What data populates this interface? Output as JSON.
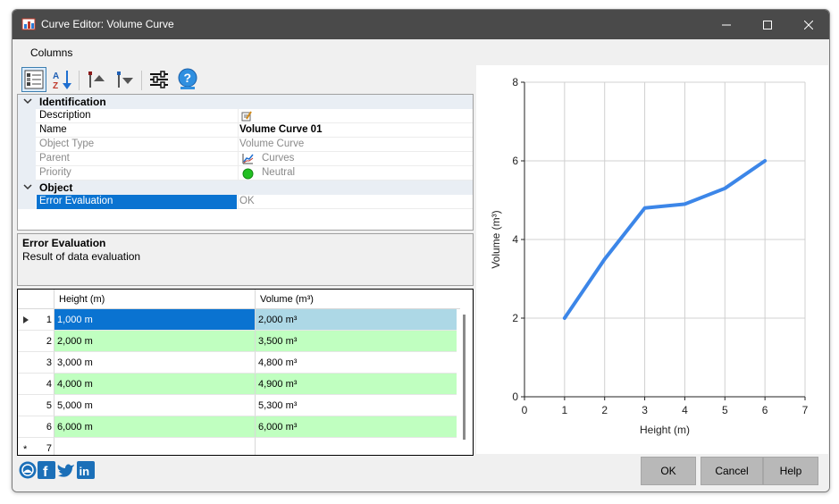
{
  "window": {
    "title": "Curve Editor: Volume Curve",
    "minimize_icon": "minimize-icon",
    "maximize_icon": "maximize-icon",
    "close_icon": "close-icon"
  },
  "menu": {
    "columns": "Columns"
  },
  "toolbar": {
    "buttons": [
      "categorized-view-icon",
      "sort-alphabetical-icon",
      "move-up-icon",
      "move-down-icon",
      "settings-sliders-icon",
      "help-icon"
    ]
  },
  "properties": {
    "categories": [
      {
        "label": "Identification",
        "rows": [
          {
            "name": "Description",
            "value": "",
            "icon": "edit-note-icon"
          },
          {
            "name": "Name",
            "value": "Volume Curve 01"
          },
          {
            "name": "Object Type",
            "value": "Volume Curve"
          },
          {
            "name": "Parent",
            "value": "Curves",
            "icon": "curves-icon"
          },
          {
            "name": "Priority",
            "value": "Neutral",
            "icon": "green-dot-icon"
          }
        ]
      },
      {
        "label": "Object",
        "rows": [
          {
            "name": "Error Evaluation",
            "value": "OK"
          }
        ]
      }
    ]
  },
  "description": {
    "title": "Error Evaluation",
    "text": "Result of data evaluation"
  },
  "grid": {
    "columns": [
      "Height (m)",
      "Volume (m³)"
    ],
    "rows": [
      {
        "num": "1",
        "height": "1,000 m",
        "volume": "2,000 m³"
      },
      {
        "num": "2",
        "height": "2,000 m",
        "volume": "3,500 m³"
      },
      {
        "num": "3",
        "height": "3,000 m",
        "volume": "4,800 m³"
      },
      {
        "num": "4",
        "height": "4,000 m",
        "volume": "4,900 m³"
      },
      {
        "num": "5",
        "height": "5,000 m",
        "volume": "5,300 m³"
      },
      {
        "num": "6",
        "height": "6,000 m",
        "volume": "6,000 m³"
      }
    ],
    "new_row": {
      "num": "7",
      "marker": "*"
    },
    "selected_row": 0,
    "highlight_color": "#c0ffc0",
    "selection_color": "#0a73d1"
  },
  "chart_data": {
    "type": "line",
    "x": [
      1,
      2,
      3,
      4,
      5,
      6
    ],
    "series": [
      {
        "values": [
          2,
          3.5,
          4.8,
          4.9,
          5.3,
          6
        ],
        "color": "#3c86e8"
      }
    ],
    "xlabel": "Height (m)",
    "ylabel": "Volume (m³)",
    "xlim": [
      0,
      7
    ],
    "ylim": [
      0,
      8
    ],
    "xticks": [
      "0",
      "1",
      "2",
      "3",
      "4",
      "5",
      "6",
      "7"
    ],
    "yticks": [
      "0",
      "2",
      "4",
      "6",
      "8"
    ],
    "grid": true
  },
  "social": [
    "logo-icon",
    "facebook-icon",
    "twitter-icon",
    "linkedin-icon"
  ],
  "buttons": {
    "ok": "OK",
    "cancel": "Cancel",
    "help": "Help"
  }
}
